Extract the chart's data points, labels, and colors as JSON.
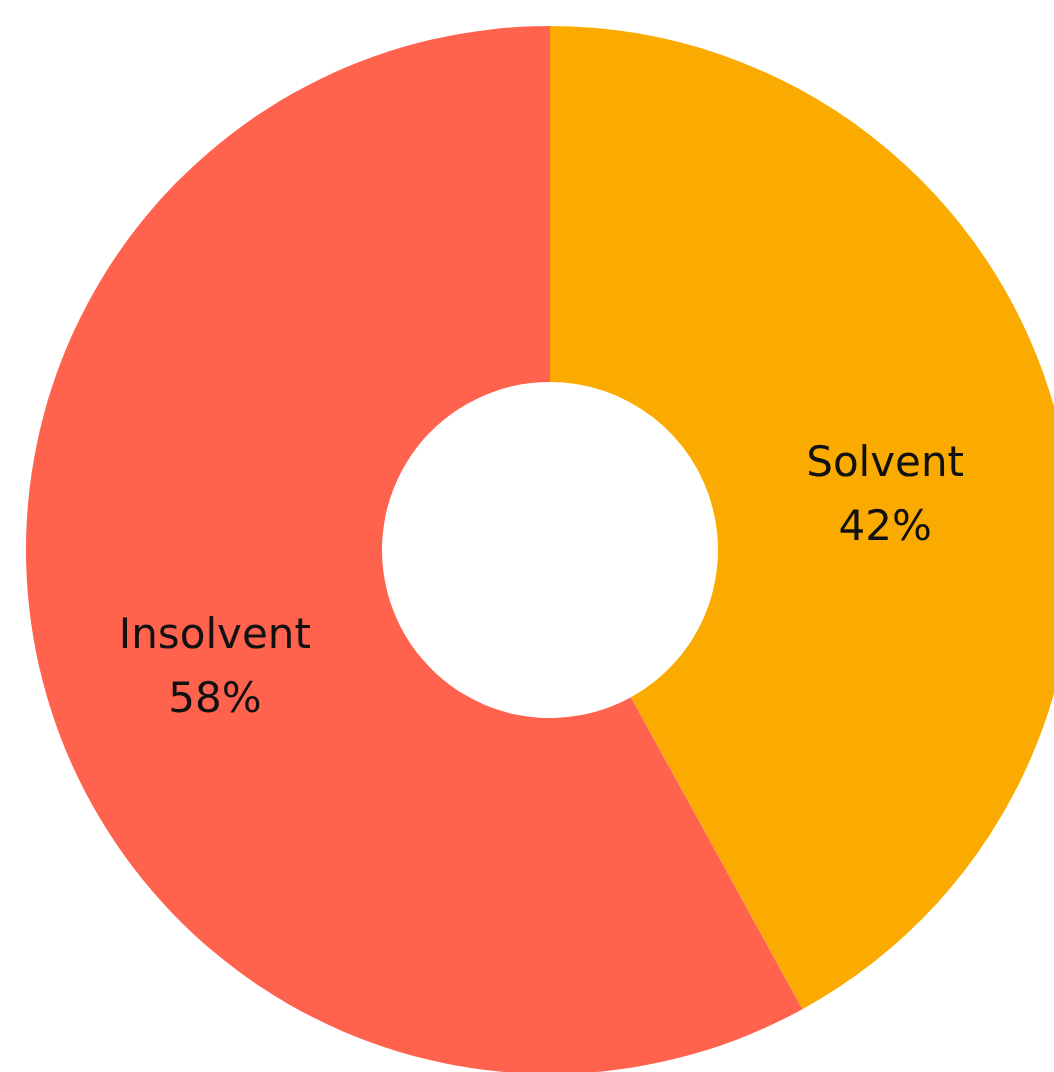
{
  "chart_data": {
    "type": "donut",
    "categories": [
      "Solvent",
      "Insolvent"
    ],
    "values": [
      42,
      58
    ],
    "value_labels": [
      "42%",
      "58%"
    ],
    "colors": [
      "#fbab00",
      "#ff624d"
    ]
  }
}
